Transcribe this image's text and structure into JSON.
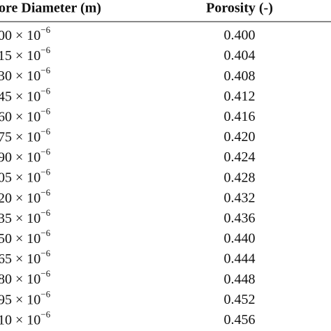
{
  "table": {
    "header": [
      "ore Diameter (m)",
      "Porosity (-)"
    ],
    "rows": [
      [
        {
          "base": "00 × 10",
          "exp": "−6"
        },
        "0.400"
      ],
      [
        {
          "base": "15 × 10",
          "exp": "−6"
        },
        "0.404"
      ],
      [
        {
          "base": "30 × 10",
          "exp": "−6"
        },
        "0.408"
      ],
      [
        {
          "base": "45 × 10",
          "exp": "−6"
        },
        "0.412"
      ],
      [
        {
          "base": "60 × 10",
          "exp": "−6"
        },
        "0.416"
      ],
      [
        {
          "base": "75 × 10",
          "exp": "−6"
        },
        "0.420"
      ],
      [
        {
          "base": "90 × 10",
          "exp": "−6"
        },
        "0.424"
      ],
      [
        {
          "base": "05 × 10",
          "exp": "−6"
        },
        "0.428"
      ],
      [
        {
          "base": "20 × 10",
          "exp": "−6"
        },
        "0.432"
      ],
      [
        {
          "base": "35 × 10",
          "exp": "−6"
        },
        "0.436"
      ],
      [
        {
          "base": "50 × 10",
          "exp": "−6"
        },
        "0.440"
      ],
      [
        {
          "base": "65 × 10",
          "exp": "−6"
        },
        "0.444"
      ],
      [
        {
          "base": "80 × 10",
          "exp": "−6"
        },
        "0.448"
      ],
      [
        {
          "base": "95 × 10",
          "exp": "−6"
        },
        "0.452"
      ],
      [
        {
          "base": "10 × 10",
          "exp": "−6"
        },
        "0.456"
      ]
    ]
  }
}
